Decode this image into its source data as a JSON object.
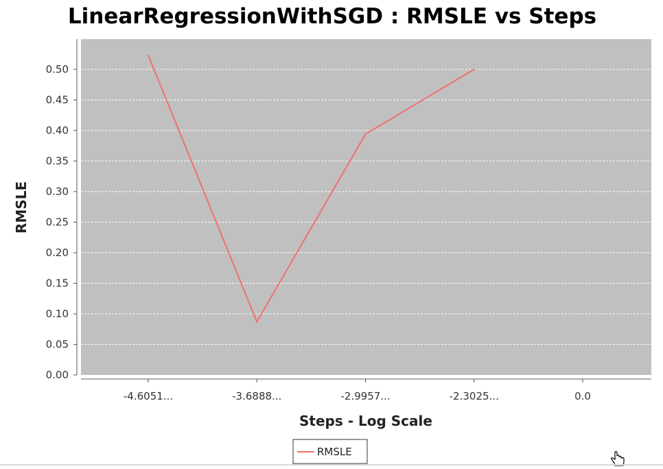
{
  "chart_data": {
    "type": "line",
    "title": "LinearRegressionWithSGD : RMSLE vs Steps",
    "xlabel": "Steps - Log Scale",
    "ylabel": "RMSLE",
    "categories": [
      "-4.6051...",
      "-3.6888...",
      "-2.9957...",
      "-2.3025...",
      "0.0"
    ],
    "series": [
      {
        "name": "RMSLE",
        "color": "#f07070",
        "values": [
          0.523,
          0.087,
          0.394,
          0.5,
          null
        ]
      }
    ],
    "ylim": [
      0,
      0.5
    ],
    "yticks": [
      "0.00",
      "0.05",
      "0.10",
      "0.15",
      "0.20",
      "0.25",
      "0.30",
      "0.35",
      "0.40",
      "0.45",
      "0.50"
    ],
    "grid": true,
    "legend": "bottom-center",
    "plot_background": "#c0c0c0",
    "gridline_color": "#ffffff"
  },
  "icons": {
    "cursor": "hand-cursor-icon"
  }
}
